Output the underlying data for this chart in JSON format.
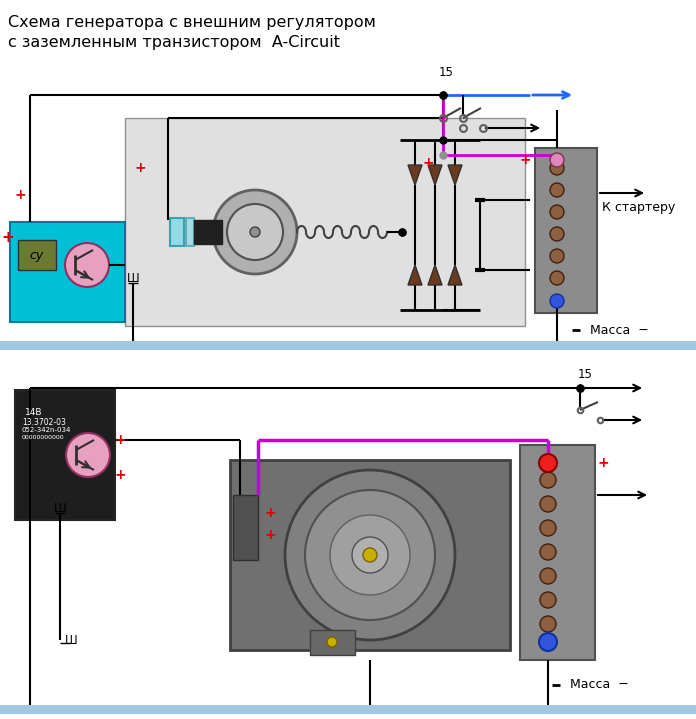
{
  "title_line1": "Схема генератора с внешним регулятором",
  "title_line2": "с заземленным транзистором  A-Circuit",
  "bg_color": "#ffffff",
  "light_gray": "#e0e0e0",
  "teal_box_color": "#00c0d8",
  "olive_color": "#6b7a30",
  "pink_circle_color": "#e8a0c0",
  "dark_brown_color": "#6b3a1f",
  "battery_label": "К стартеру",
  "massa_label": "Масса",
  "label_15": "15",
  "label_sh": "Ш",
  "label_su": "су",
  "plus_color": "#dd0000",
  "blue_wire": "#1a6aff",
  "magenta_wire": "#cc00cc",
  "bottom_bar_color": "#a0c8e0",
  "batt_gray": "#8c8c8c",
  "batt_edge": "#505050",
  "batt_brown": "#8c6040",
  "pink_dot": "#dd88bb",
  "blue_dot": "#3355dd"
}
